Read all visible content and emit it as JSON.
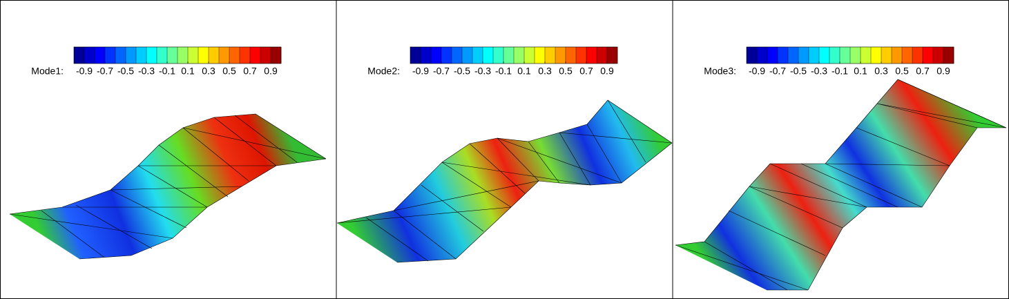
{
  "chart_data": [
    {
      "type": "contour",
      "label": "Mode1:",
      "clim": [
        -1,
        1
      ],
      "cticks": [
        -0.9,
        -0.7,
        -0.5,
        -0.3,
        -0.1,
        0.1,
        0.3,
        0.5,
        0.7,
        0.9
      ],
      "colormap": "jet"
    },
    {
      "type": "contour",
      "label": "Mode2:",
      "clim": [
        -1,
        1
      ],
      "cticks": [
        -0.9,
        -0.7,
        -0.5,
        -0.3,
        -0.1,
        0.1,
        0.3,
        0.5,
        0.7,
        0.9
      ],
      "colormap": "jet"
    },
    {
      "type": "contour",
      "label": "Mode3:",
      "clim": [
        -1,
        1
      ],
      "cticks": [
        -0.9,
        -0.7,
        -0.5,
        -0.3,
        -0.1,
        0.1,
        0.3,
        0.5,
        0.7,
        0.9
      ],
      "colormap": "jet"
    }
  ]
}
